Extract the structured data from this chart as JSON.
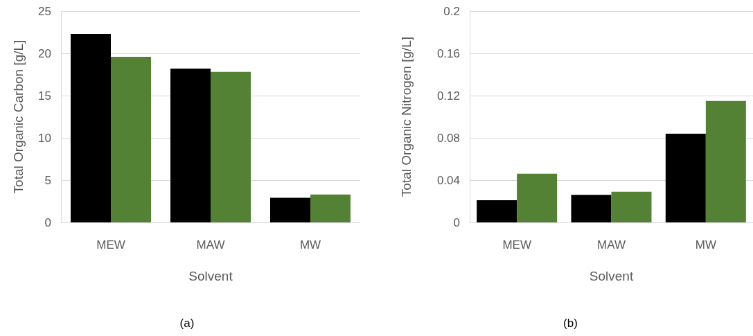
{
  "chart_data": [
    {
      "type": "bar",
      "xlabel": "Solvent",
      "ylabel": "Total Organic Carbon [g/L]",
      "categories": [
        "MEW",
        "MAW",
        "MW"
      ],
      "series": [
        {
          "color": "#000000",
          "values": [
            22.3,
            18.2,
            2.9
          ]
        },
        {
          "color": "#548235",
          "values": [
            19.6,
            17.8,
            3.3
          ]
        }
      ],
      "ylim": [
        0,
        25
      ],
      "yticks": [
        0,
        5,
        10,
        15,
        20,
        25
      ],
      "grid": "y",
      "annotations": [
        "(a)"
      ]
    },
    {
      "type": "bar",
      "xlabel": "Solvent",
      "ylabel": "Total Organic Nitrogen [g/L]",
      "categories": [
        "MEW",
        "MAW",
        "MW"
      ],
      "series": [
        {
          "color": "#000000",
          "values": [
            0.021,
            0.026,
            0.084
          ]
        },
        {
          "color": "#548235",
          "values": [
            0.046,
            0.029,
            0.115
          ]
        }
      ],
      "ylim": [
        0,
        0.2
      ],
      "yticks": [
        0,
        0.04,
        0.08,
        0.12,
        0.16,
        0.2
      ],
      "grid": "y",
      "annotations": [
        "(b)"
      ]
    }
  ]
}
